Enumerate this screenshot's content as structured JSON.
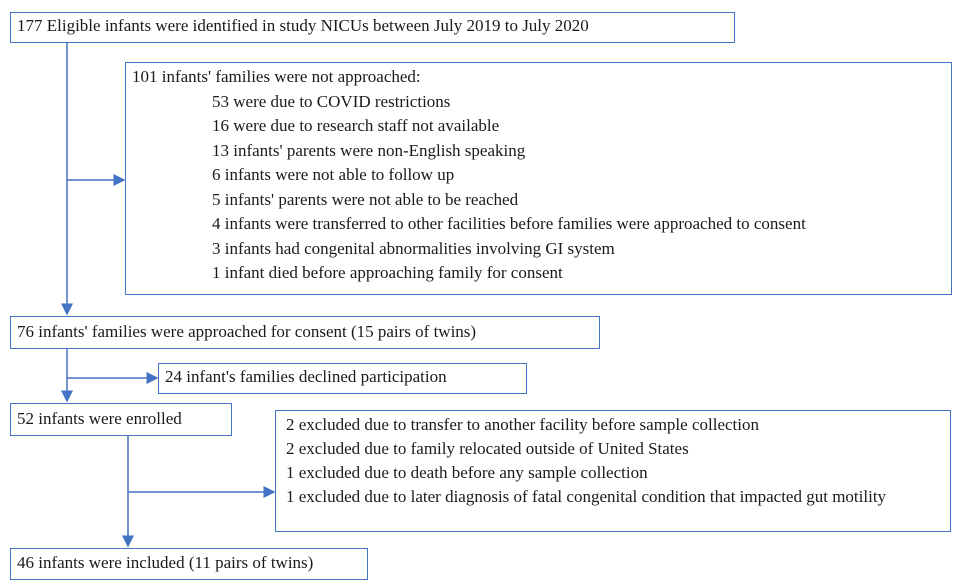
{
  "nodes": [
    {
      "label": "177 Eligible infants were identified in study NICUs between July 2019 to July 2020"
    },
    {
      "label": "101 infants' families were not approached:",
      "items": [
        "53 were due to COVID restrictions",
        "16 were due to research staff not available",
        "13 infants' parents were non-English speaking",
        "6 infants were not able to follow up",
        "5 infants' parents were not able to be reached",
        "4 infants were transferred to other facilities before families were approached to consent",
        "3 infants had congenital abnormalities involving GI system",
        "1 infant died before approaching family for consent"
      ]
    },
    {
      "label": "76 infants' families were approached for consent (15 pairs of twins)"
    },
    {
      "label": "24 infant's families declined participation"
    },
    {
      "label": "52 infants were enrolled"
    },
    {
      "items": [
        "2 excluded due to transfer to another facility before sample collection",
        "2 excluded due to family relocated outside of United States",
        "1 excluded due to death before any sample collection",
        "1 excluded due to later diagnosis of fatal congenital condition that impacted gut motility"
      ]
    },
    {
      "label": "46 infants were included (11 pairs of twins)"
    }
  ]
}
